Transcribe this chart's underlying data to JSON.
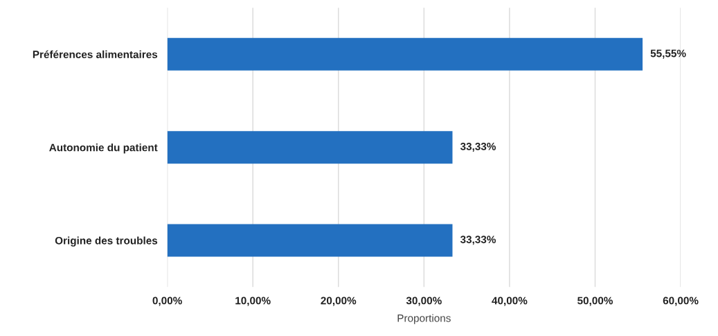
{
  "chart_data": {
    "type": "bar",
    "orientation": "horizontal",
    "xlabel": "Proportions",
    "categories": [
      "Préférences alimentaires",
      "Autonomie du patient",
      "Origine des troubles"
    ],
    "values": [
      55.55,
      33.33,
      33.33
    ],
    "value_labels": [
      "55,55%",
      "33,33%",
      "33,33%"
    ],
    "color": "#2370c0",
    "xlim": [
      0,
      60
    ],
    "xticks": [
      {
        "value": 0,
        "label": "0,00%"
      },
      {
        "value": 10,
        "label": "10,00%"
      },
      {
        "value": 20,
        "label": "20,00%"
      },
      {
        "value": 30,
        "label": "30,00%"
      },
      {
        "value": 40,
        "label": "40,00%"
      },
      {
        "value": 50,
        "label": "50,00%"
      },
      {
        "value": 60,
        "label": "60,00%"
      }
    ],
    "grid": "x",
    "legend": false
  }
}
